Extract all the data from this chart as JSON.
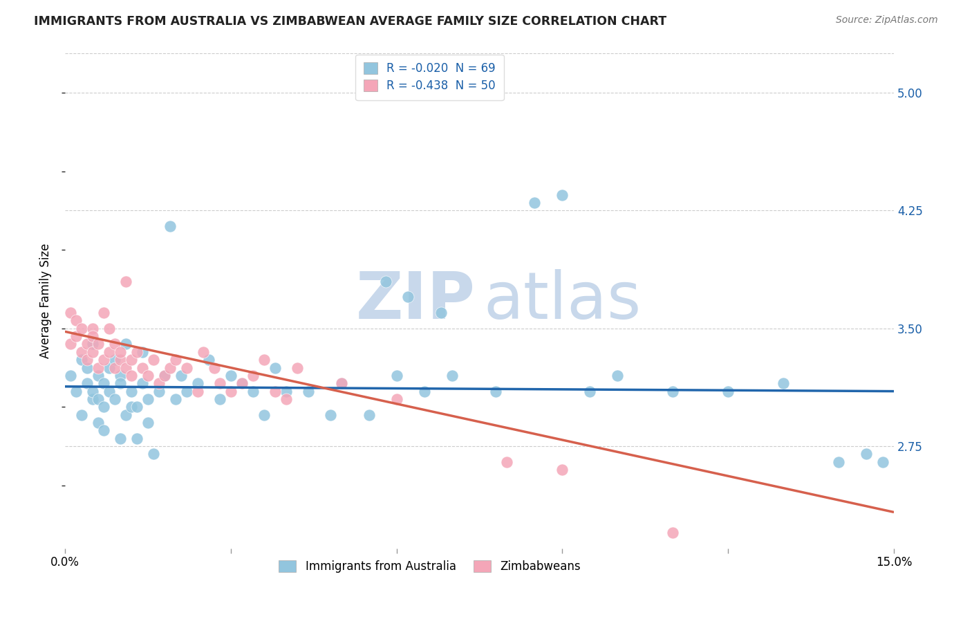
{
  "title": "IMMIGRANTS FROM AUSTRALIA VS ZIMBABWEAN AVERAGE FAMILY SIZE CORRELATION CHART",
  "source": "Source: ZipAtlas.com",
  "ylabel": "Average Family Size",
  "xlim": [
    0.0,
    0.15
  ],
  "ylim": [
    2.1,
    5.25
  ],
  "yticks": [
    2.75,
    3.5,
    4.25,
    5.0
  ],
  "xticks": [
    0.0,
    0.03,
    0.06,
    0.09,
    0.12,
    0.15
  ],
  "xticklabels": [
    "0.0%",
    "",
    "",
    "",
    "",
    "15.0%"
  ],
  "legend_text1": "R = -0.020  N = 69",
  "legend_text2": "R = -0.438  N = 50",
  "bottom_label1": "Immigrants from Australia",
  "bottom_label2": "Zimbabweans",
  "color_blue": "#92c5de",
  "color_pink": "#f4a6b8",
  "line_blue": "#2166ac",
  "line_pink": "#d6604d",
  "grid_color": "#cccccc",
  "watermark_color": "#c8d8eb",
  "title_color": "#222222",
  "source_color": "#777777",
  "legend_text_color": "#1a5fa8",
  "blue_scatter_x": [
    0.001,
    0.002,
    0.003,
    0.003,
    0.004,
    0.004,
    0.005,
    0.005,
    0.005,
    0.006,
    0.006,
    0.006,
    0.007,
    0.007,
    0.007,
    0.008,
    0.008,
    0.009,
    0.009,
    0.01,
    0.01,
    0.01,
    0.011,
    0.011,
    0.012,
    0.012,
    0.013,
    0.013,
    0.014,
    0.014,
    0.015,
    0.015,
    0.016,
    0.017,
    0.018,
    0.019,
    0.02,
    0.021,
    0.022,
    0.024,
    0.026,
    0.028,
    0.03,
    0.032,
    0.034,
    0.036,
    0.038,
    0.04,
    0.044,
    0.048,
    0.05,
    0.055,
    0.06,
    0.065,
    0.07,
    0.078,
    0.085,
    0.09,
    0.095,
    0.1,
    0.058,
    0.062,
    0.068,
    0.11,
    0.12,
    0.13,
    0.14,
    0.145,
    0.148
  ],
  "blue_scatter_y": [
    3.2,
    3.1,
    3.3,
    2.95,
    3.15,
    3.25,
    3.05,
    3.4,
    3.1,
    2.9,
    3.2,
    3.05,
    3.0,
    3.15,
    2.85,
    3.25,
    3.1,
    3.3,
    3.05,
    3.2,
    2.8,
    3.15,
    3.4,
    2.95,
    3.1,
    3.0,
    3.0,
    2.8,
    3.35,
    3.15,
    2.9,
    3.05,
    2.7,
    3.1,
    3.2,
    4.15,
    3.05,
    3.2,
    3.1,
    3.15,
    3.3,
    3.05,
    3.2,
    3.15,
    3.1,
    2.95,
    3.25,
    3.1,
    3.1,
    2.95,
    3.15,
    2.95,
    3.2,
    3.1,
    3.2,
    3.1,
    4.3,
    4.35,
    3.1,
    3.2,
    3.8,
    3.7,
    3.6,
    3.1,
    3.1,
    3.15,
    2.65,
    2.7,
    2.65
  ],
  "pink_scatter_x": [
    0.001,
    0.001,
    0.002,
    0.002,
    0.003,
    0.003,
    0.004,
    0.004,
    0.005,
    0.005,
    0.005,
    0.006,
    0.006,
    0.007,
    0.007,
    0.008,
    0.008,
    0.009,
    0.009,
    0.01,
    0.01,
    0.011,
    0.011,
    0.012,
    0.012,
    0.013,
    0.014,
    0.015,
    0.016,
    0.017,
    0.018,
    0.019,
    0.02,
    0.022,
    0.024,
    0.025,
    0.027,
    0.028,
    0.03,
    0.032,
    0.034,
    0.036,
    0.038,
    0.04,
    0.042,
    0.05,
    0.06,
    0.08,
    0.09,
    0.11
  ],
  "pink_scatter_y": [
    3.4,
    3.6,
    3.45,
    3.55,
    3.35,
    3.5,
    3.4,
    3.3,
    3.5,
    3.35,
    3.45,
    3.4,
    3.25,
    3.3,
    3.6,
    3.5,
    3.35,
    3.25,
    3.4,
    3.3,
    3.35,
    3.25,
    3.8,
    3.2,
    3.3,
    3.35,
    3.25,
    3.2,
    3.3,
    3.15,
    3.2,
    3.25,
    3.3,
    3.25,
    3.1,
    3.35,
    3.25,
    3.15,
    3.1,
    3.15,
    3.2,
    3.3,
    3.1,
    3.05,
    3.25,
    3.15,
    3.05,
    2.65,
    2.6,
    2.2
  ],
  "blue_line_x": [
    0.0,
    0.15
  ],
  "blue_line_y": [
    3.13,
    3.1
  ],
  "pink_line_x": [
    0.0,
    0.15
  ],
  "pink_line_y": [
    3.48,
    2.33
  ],
  "figsize": [
    14.06,
    8.92
  ],
  "dpi": 100
}
